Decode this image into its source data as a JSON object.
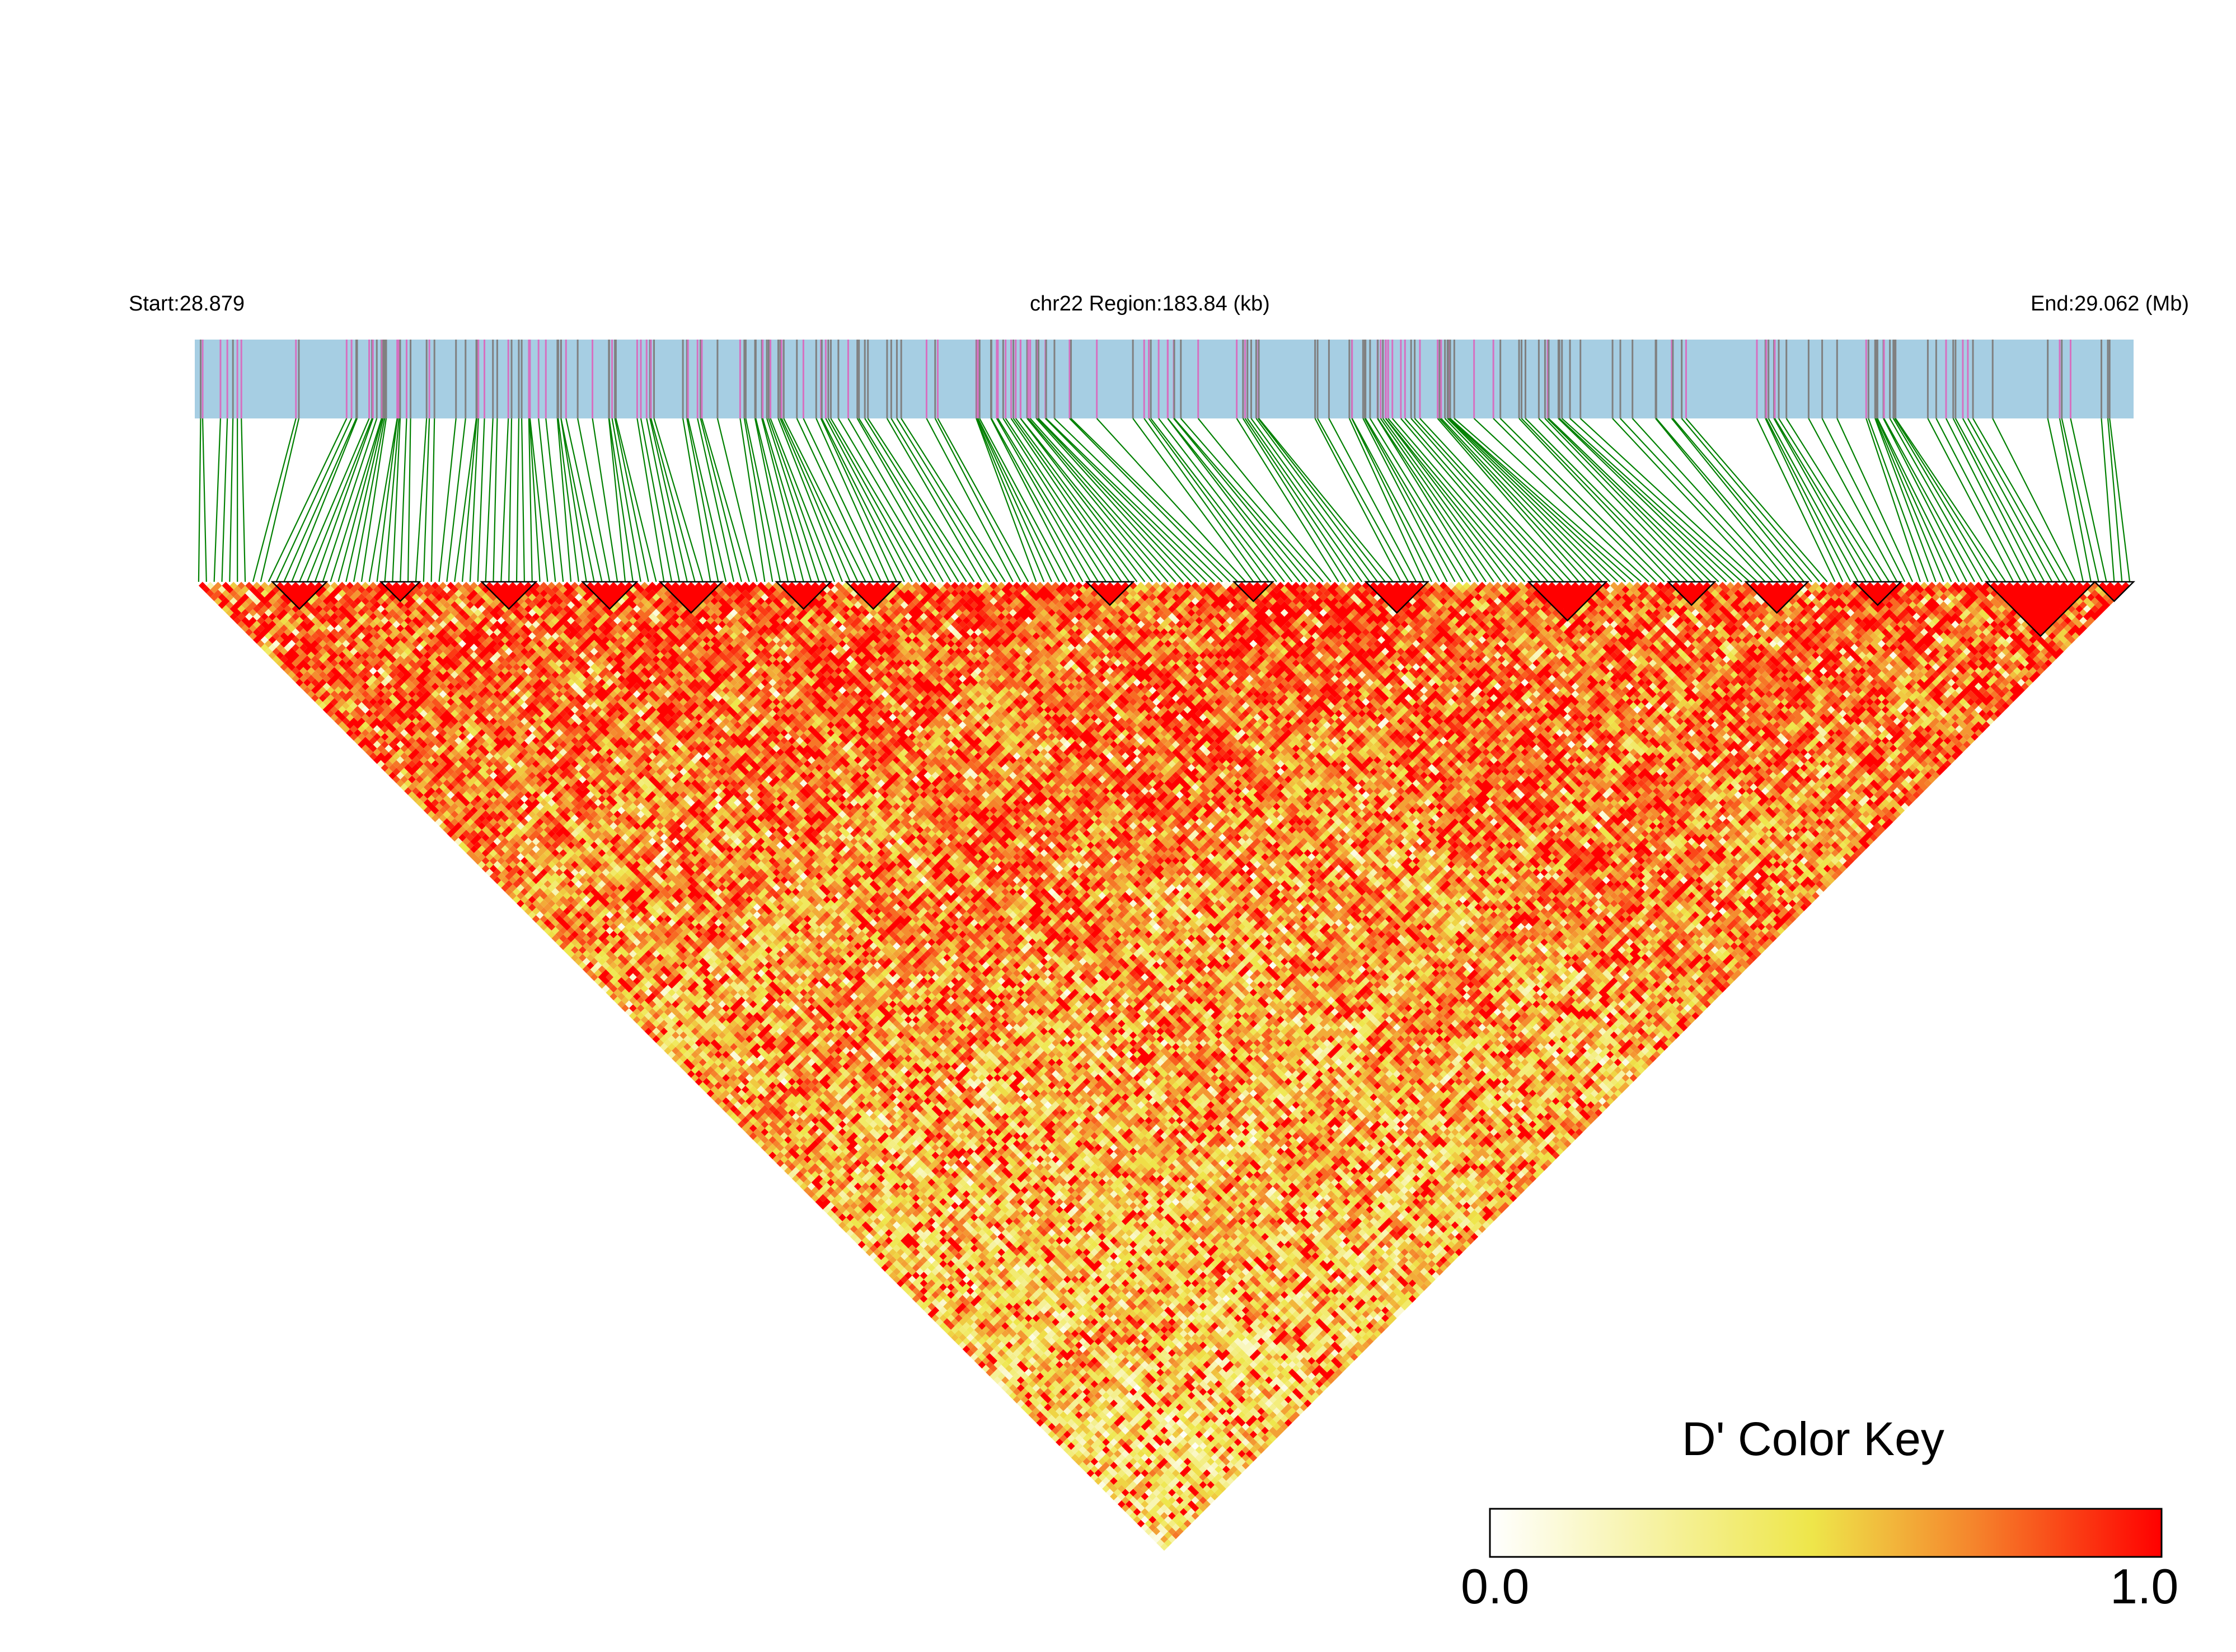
{
  "chart_data": {
    "type": "heatmap",
    "subtype": "LD triangle heatmap (D')",
    "header": {
      "start_label": "Start:28.879",
      "region_label": "chr22 Region:183.84 (kb)",
      "end_label": "End:29.062 (Mb)"
    },
    "chromosome": "chr22",
    "region_start_mb": 28.879,
    "region_end_mb": 29.062,
    "region_length_kb": 183.84,
    "snp_count": 250,
    "metric": "D'",
    "value_range": [
      0.0,
      1.0
    ],
    "color_key": {
      "title": "D' Color Key",
      "min_label": "0.0",
      "max_label": "1.0",
      "stops": [
        "#ffffff",
        "#f0e64a",
        "#f58a2a",
        "#ff0000"
      ]
    },
    "colors": {
      "snp_track": "#a6cee3",
      "snp_tick": "#808080",
      "snp_tick_highlight": "#d670c0",
      "connector_lines": "#008000",
      "block_outline": "#000000"
    },
    "notes": "Pairwise D' values between SNPs; strong-LD blocks outlined with triangles near the top diagonal."
  }
}
